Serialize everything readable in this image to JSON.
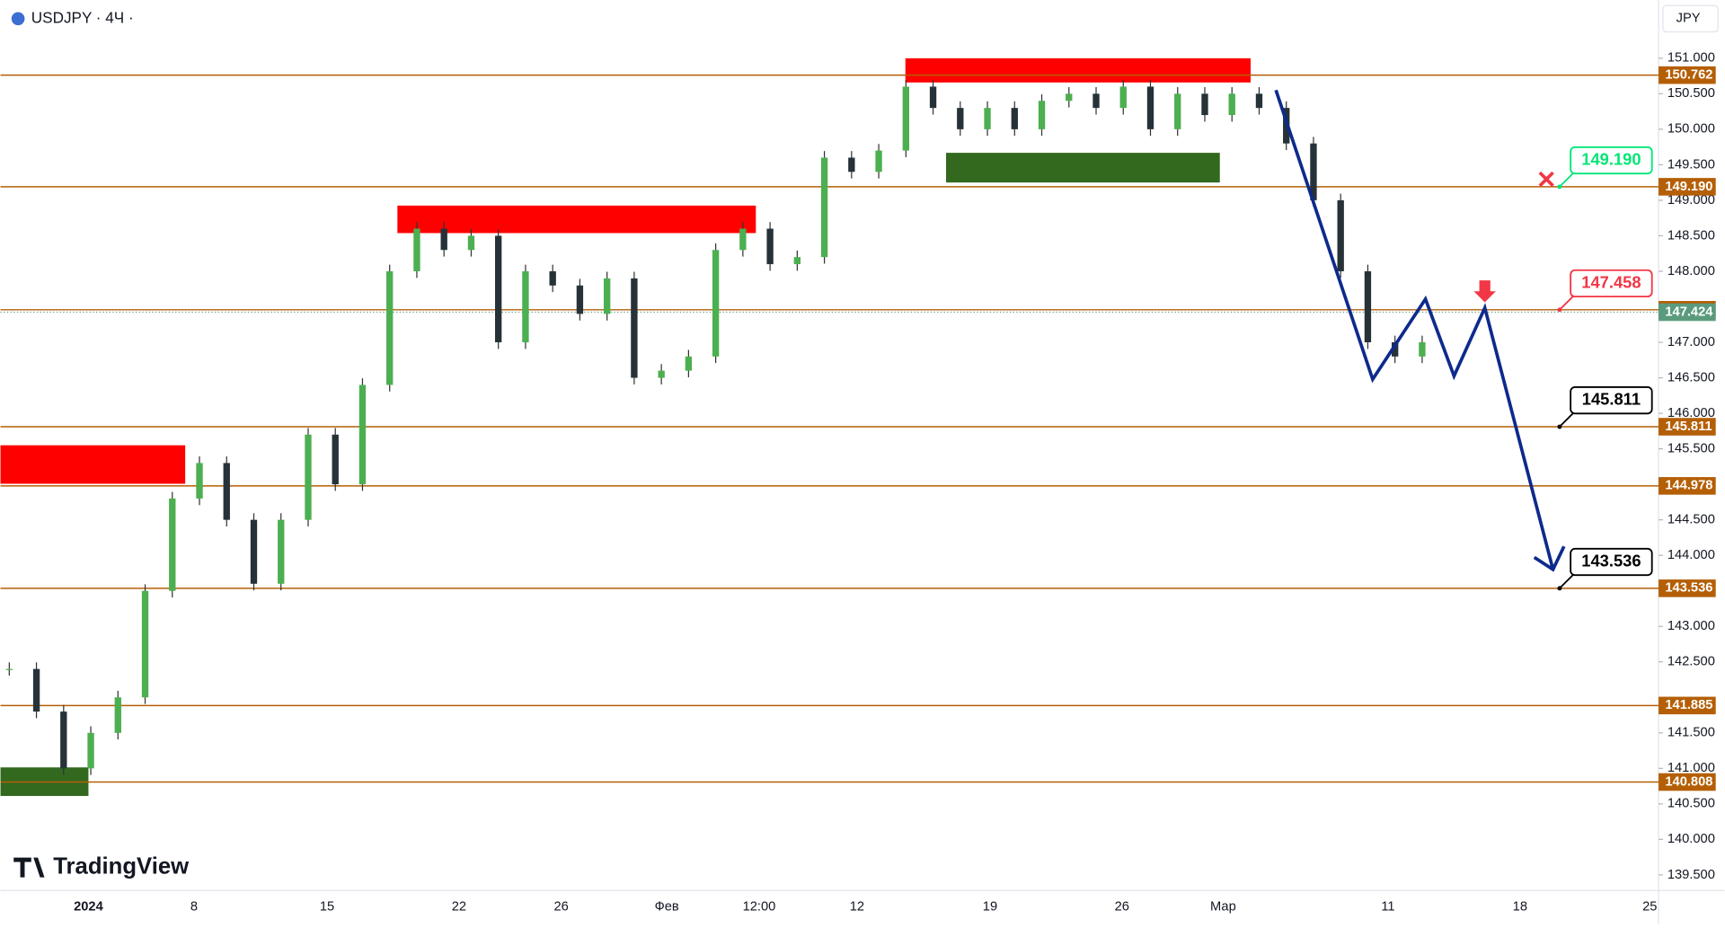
{
  "header": {
    "symbol": "USDJPY · 4Ч ·",
    "currency": "JPY",
    "brand": "TradingView"
  },
  "chart_data": {
    "type": "candlestick",
    "ylim": [
      139.28,
      151.82
    ],
    "yticks": [
      {
        "value": 151,
        "label": "151.000"
      },
      {
        "value": 150.5,
        "label": "150.500"
      },
      {
        "value": 150,
        "label": "150.000"
      },
      {
        "value": 149.5,
        "label": "149.500"
      },
      {
        "value": 149,
        "label": "149.000"
      },
      {
        "value": 148.5,
        "label": "148.500"
      },
      {
        "value": 148,
        "label": "148.000"
      },
      {
        "value": 147,
        "label": "147.000"
      },
      {
        "value": 146.5,
        "label": "146.500"
      },
      {
        "value": 146,
        "label": "146.000"
      },
      {
        "value": 145.5,
        "label": "145.500"
      },
      {
        "value": 144.5,
        "label": "144.500"
      },
      {
        "value": 144,
        "label": "144.000"
      },
      {
        "value": 143,
        "label": "143.000"
      },
      {
        "value": 142.5,
        "label": "142.500"
      },
      {
        "value": 141.5,
        "label": "141.500"
      },
      {
        "value": 141,
        "label": "141.000"
      },
      {
        "value": 140.5,
        "label": "140.500"
      },
      {
        "value": 140,
        "label": "140.000"
      },
      {
        "value": 139.5,
        "label": "139.500"
      }
    ],
    "levels": [
      150.762,
      {
        "value": 149.19,
        "label": "149.190"
      },
      147.458,
      145.811,
      144.978,
      143.536,
      141.885,
      140.808
    ],
    "current_price": 147.424,
    "callouts": [
      {
        "value": 149.19,
        "label": "149.190",
        "color": "#00e676"
      },
      {
        "value": 147.458,
        "label": "147.458",
        "color": "#f23645"
      },
      {
        "value": 145.811,
        "label": "145.811",
        "color": "#000000"
      },
      {
        "value": 143.536,
        "label": "143.536",
        "color": "#000000"
      }
    ],
    "x_labels": [
      "2024",
      "8",
      "15",
      "22",
      "26",
      "Фев",
      "12:00",
      "12",
      "19",
      "26",
      "Мар",
      "11",
      "18",
      "25"
    ],
    "closes": [
      142.4,
      141.8,
      141.0,
      141.5,
      142.0,
      143.5,
      144.8,
      145.3,
      144.5,
      143.6,
      144.5,
      145.7,
      145.0,
      146.4,
      148.0,
      148.6,
      148.3,
      148.5,
      147.0,
      148.0,
      147.8,
      147.4,
      147.9,
      146.5,
      146.6,
      146.8,
      148.3,
      148.6,
      148.1,
      148.2,
      149.6,
      149.4,
      149.7,
      150.6,
      150.3,
      150.0,
      150.3,
      150.0,
      150.4,
      150.5,
      150.3,
      150.6,
      150.0,
      150.5,
      150.2,
      150.5,
      150.3,
      149.8,
      149.0,
      148.0,
      147.0,
      146.8,
      147.0
    ]
  }
}
